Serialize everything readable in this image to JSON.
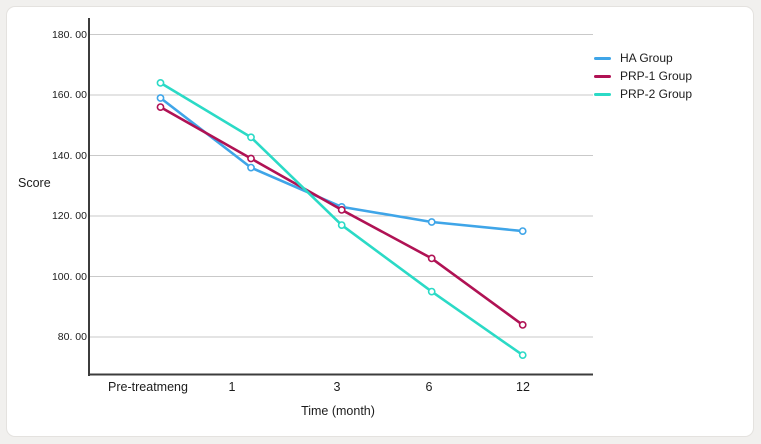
{
  "chart_data": {
    "type": "line",
    "categories": [
      "Pre-treatmeng",
      "1",
      "3",
      "6",
      "12"
    ],
    "series": [
      {
        "name": "HA Group",
        "color": "#3FA5E8",
        "values": [
          159,
          136,
          123,
          118,
          115
        ]
      },
      {
        "name": "PRP-1 Group",
        "color": "#B01254",
        "values": [
          156,
          139,
          122,
          106,
          84
        ]
      },
      {
        "name": "PRP-2 Group",
        "color": "#2BDAC6",
        "values": [
          164,
          146,
          117,
          95,
          74
        ]
      }
    ],
    "xlabel": "Time (month)",
    "ylabel": "Score",
    "ylim": [
      67,
      185
    ],
    "y_ticks": [
      180,
      160,
      140,
      120,
      100,
      80
    ],
    "y_tick_labels": [
      "180. 00",
      "160. 00",
      "140. 00",
      "120. 00",
      "100. 00",
      "80. 00"
    ],
    "grid": "horizontal gridlines on",
    "legend_position": "right",
    "marker": "open-circle"
  },
  "colors": {
    "page_bg": "#F1F0EE",
    "card_bg": "#FFFFFF",
    "gridline": "#C9C9C9",
    "axis": "#3C3C3C",
    "text": "#1C1C1C"
  }
}
